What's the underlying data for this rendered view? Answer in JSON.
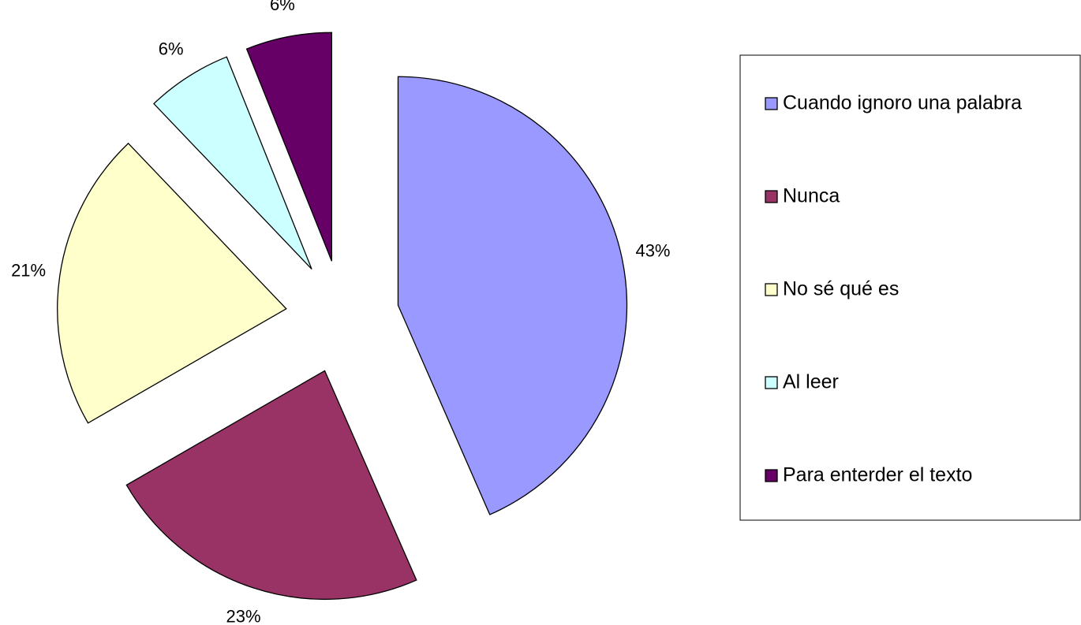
{
  "chart_data": {
    "type": "pie",
    "categories": [
      "Cuando ignoro una palabra",
      "Nunca",
      "No sé qué es",
      "Al leer",
      "Para enterder el texto"
    ],
    "values": [
      43,
      23,
      21,
      6,
      6
    ],
    "value_labels": [
      "43%",
      "23%",
      "21%",
      "6%",
      "6%"
    ],
    "colors": [
      "#9999ff",
      "#993366",
      "#ffffcc",
      "#ccffff",
      "#660066"
    ],
    "legend": "right"
  }
}
